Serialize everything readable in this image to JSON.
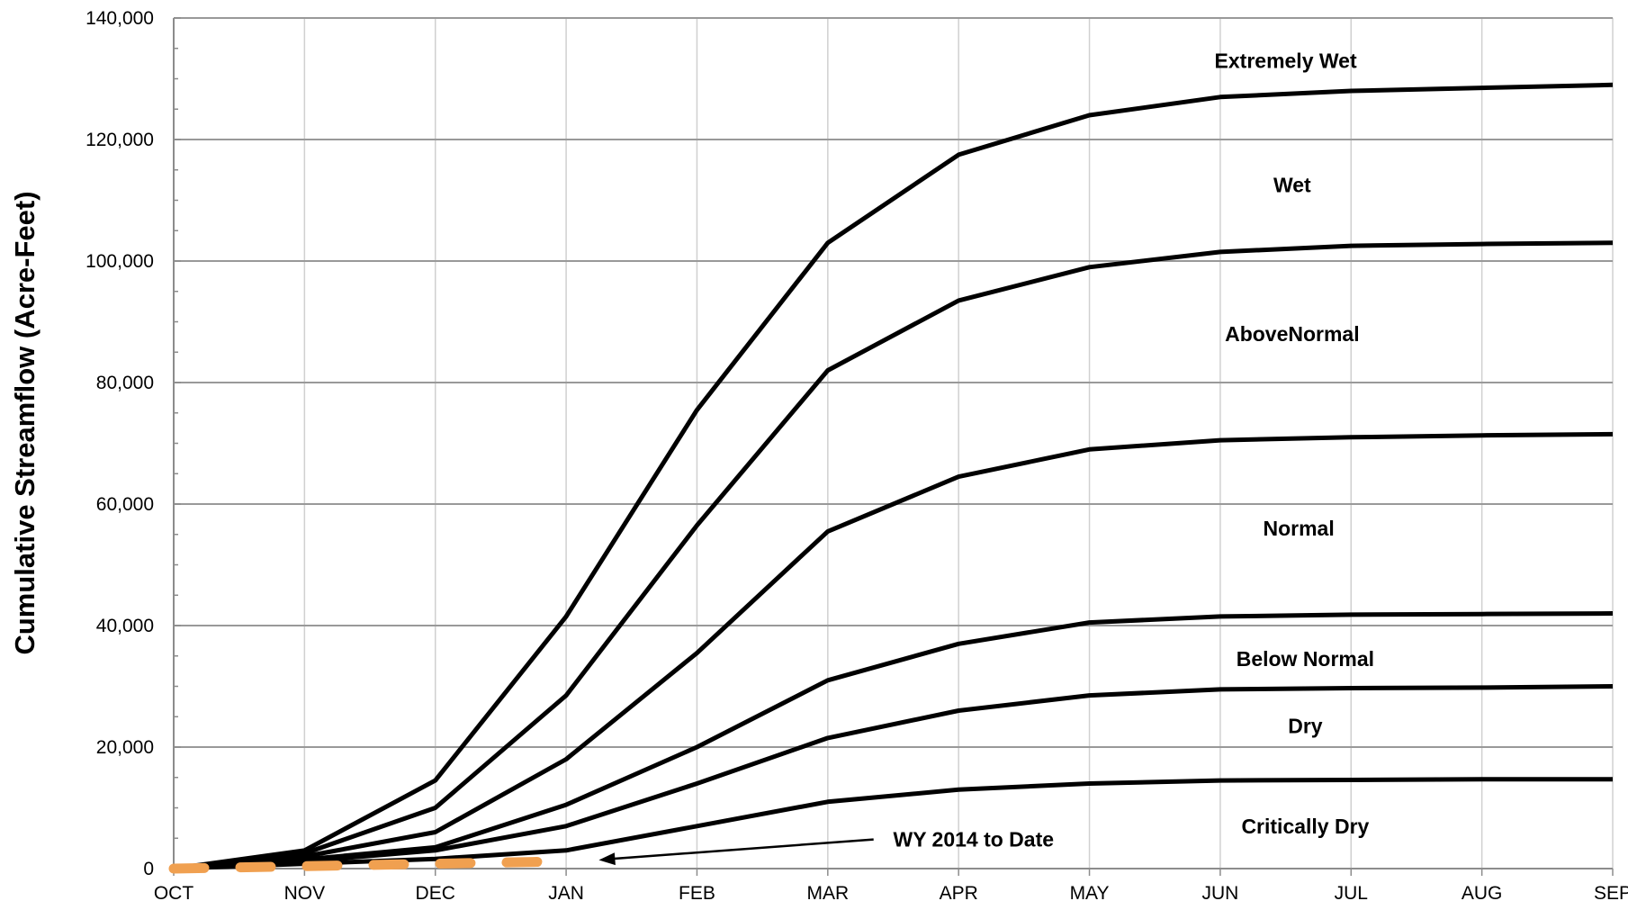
{
  "chart_data": {
    "type": "line",
    "title": "",
    "xlabel": "",
    "ylabel": "Cumulative Streamflow (Acre-Feet)",
    "categories": [
      "OCT",
      "NOV",
      "DEC",
      "JAN",
      "FEB",
      "MAR",
      "APR",
      "MAY",
      "JUN",
      "JUL",
      "AUG",
      "SEP"
    ],
    "ylim": [
      0,
      140000
    ],
    "yticks": [
      0,
      20000,
      40000,
      60000,
      80000,
      100000,
      120000,
      140000
    ],
    "ytick_labels": [
      "0",
      "20,000",
      "40,000",
      "60,000",
      "80,000",
      "100,000",
      "120,000",
      "140,000"
    ],
    "grid": true,
    "series": [
      {
        "name": "Extremely Wet",
        "values": [
          0,
          3000,
          14500,
          41500,
          75500,
          103000,
          117500,
          124000,
          127000,
          128000,
          128500,
          129000
        ]
      },
      {
        "name": "Wet",
        "values": [
          0,
          2500,
          10000,
          28500,
          56500,
          82000,
          93500,
          99000,
          101500,
          102500,
          102800,
          103000
        ]
      },
      {
        "name": "AboveNormal",
        "values": [
          0,
          2000,
          6000,
          18000,
          35500,
          55500,
          64500,
          69000,
          70500,
          71000,
          71300,
          71500
        ]
      },
      {
        "name": "Normal",
        "values": [
          0,
          1500,
          3500,
          10500,
          20000,
          31000,
          37000,
          40500,
          41500,
          41800,
          41900,
          42000
        ]
      },
      {
        "name": "Below Normal",
        "values": [
          0,
          1200,
          3000,
          7000,
          14000,
          21500,
          26000,
          28500,
          29500,
          29700,
          29800,
          30000
        ]
      },
      {
        "name": "Dry",
        "values": [
          0,
          800,
          1600,
          3000,
          7000,
          11000,
          13000,
          14000,
          14500,
          14600,
          14700,
          14700
        ]
      }
    ],
    "label_positions_note": "",
    "labels": [
      {
        "text": "Extremely Wet",
        "x": 8.5,
        "y": 133000
      },
      {
        "text": "Wet",
        "x": 8.55,
        "y": 112500
      },
      {
        "text": "AboveNormal",
        "x": 8.55,
        "y": 88000
      },
      {
        "text": "Normal",
        "x": 8.6,
        "y": 56000
      },
      {
        "text": "Below Normal",
        "x": 8.65,
        "y": 34500
      },
      {
        "text": "Dry",
        "x": 8.65,
        "y": 23500
      },
      {
        "text": "Critically Dry",
        "x": 8.65,
        "y": 7000
      }
    ],
    "wy2014": {
      "name": "WY 2014 to Date",
      "color": "#f0a050",
      "x": [
        0,
        0.25,
        0.5,
        0.75,
        1.0,
        1.25,
        1.5,
        1.75,
        2.0,
        2.25,
        2.5,
        2.75,
        3.0
      ],
      "values": [
        0,
        100,
        200,
        300,
        400,
        500,
        600,
        700,
        800,
        900,
        1000,
        1100,
        1200
      ]
    },
    "annotation": {
      "text": "WY 2014 to Date",
      "x": 5.5,
      "y": 4800,
      "arrow_to_x": 3.25,
      "arrow_to_y": 1400,
      "arrow_from_x": 5.35,
      "arrow_from_y": 4800
    }
  }
}
